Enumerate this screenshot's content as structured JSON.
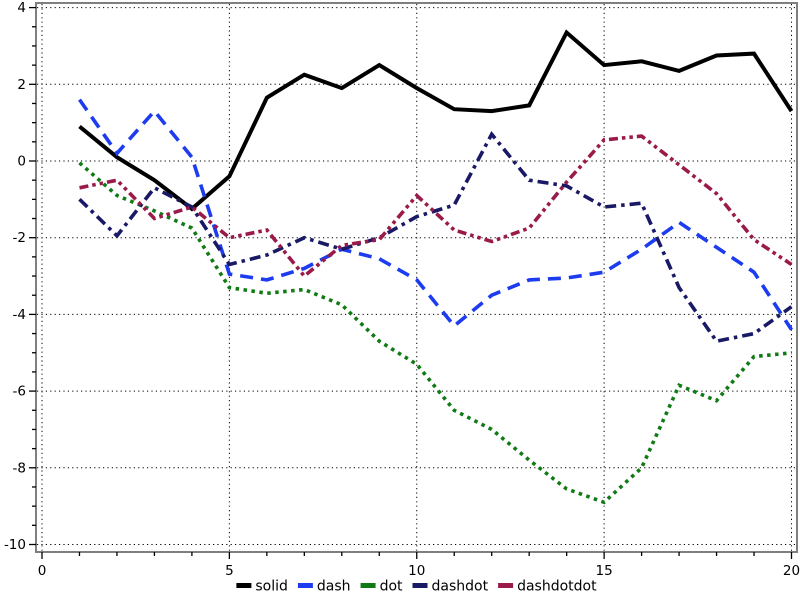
{
  "figure": {
    "background": "#ffffff",
    "frame_color": "#7f7f7f",
    "grid_color": "#000000",
    "tick_color": "#000000",
    "label_color": "#000000"
  },
  "chart_data": {
    "type": "line",
    "title": "",
    "xlabel": "",
    "ylabel": "",
    "xlim": [
      0,
      20
    ],
    "ylim": [
      -10,
      4
    ],
    "x_ticks": [
      0,
      5,
      10,
      15,
      20
    ],
    "y_ticks": [
      4,
      2,
      0,
      -2,
      -4,
      -6,
      -8,
      -10
    ],
    "x_minor_step": 1,
    "y_minor_step": 0.5,
    "grid": "dotted-major",
    "legend_position": "bottom-center",
    "x": [
      1,
      2,
      3,
      4,
      5,
      6,
      7,
      8,
      9,
      10,
      11,
      12,
      13,
      14,
      15,
      16,
      17,
      18,
      19,
      20
    ],
    "series": [
      {
        "name": "solid",
        "color": "#000000",
        "linestyle": "solid",
        "values": [
          0.9,
          0.1,
          -0.5,
          -1.25,
          -0.4,
          1.65,
          2.25,
          1.9,
          2.5,
          1.9,
          1.35,
          1.3,
          1.45,
          3.35,
          2.5,
          2.6,
          2.35,
          2.75,
          2.8,
          1.3
        ]
      },
      {
        "name": "dash",
        "color": "#1d3cf0",
        "linestyle": "dash",
        "values": [
          1.6,
          0.2,
          1.3,
          0.1,
          -2.95,
          -3.1,
          -2.8,
          -2.3,
          -2.55,
          -3.1,
          -4.3,
          -3.5,
          -3.1,
          -3.05,
          -2.9,
          -2.3,
          -1.6,
          -2.25,
          -2.9,
          -4.4
        ]
      },
      {
        "name": "dot",
        "color": "#107a14",
        "linestyle": "dot",
        "values": [
          -0.05,
          -0.9,
          -1.3,
          -1.75,
          -3.3,
          -3.45,
          -3.35,
          -3.75,
          -4.7,
          -5.3,
          -6.5,
          -7.0,
          -7.8,
          -8.55,
          -8.9,
          -8.0,
          -5.85,
          -6.25,
          -5.1,
          -5.0
        ]
      },
      {
        "name": "dashdot",
        "color": "#191966",
        "linestyle": "dashdot",
        "values": [
          -1.0,
          -1.95,
          -0.7,
          -1.2,
          -2.7,
          -2.45,
          -2.0,
          -2.3,
          -2.0,
          -1.45,
          -1.15,
          0.7,
          -0.5,
          -0.65,
          -1.2,
          -1.1,
          -3.3,
          -4.7,
          -4.5,
          -3.8
        ]
      },
      {
        "name": "dashdotdot",
        "color": "#9a1a4a",
        "linestyle": "dashdotdot",
        "values": [
          -0.7,
          -0.5,
          -1.5,
          -1.2,
          -2.0,
          -1.8,
          -3.0,
          -2.2,
          -2.05,
          -0.9,
          -1.8,
          -2.1,
          -1.75,
          -0.55,
          0.55,
          0.65,
          -0.1,
          -0.85,
          -2.05,
          -2.7
        ]
      }
    ]
  }
}
